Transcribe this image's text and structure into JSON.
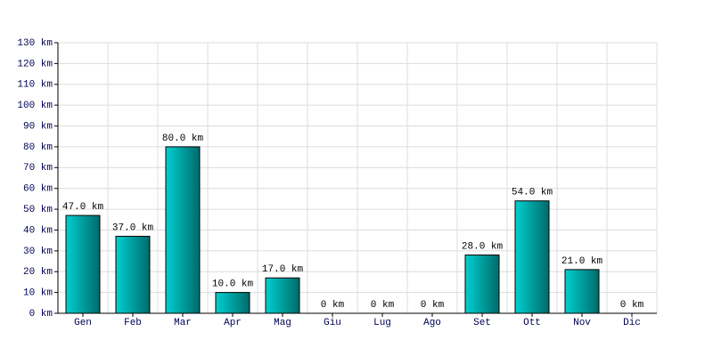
{
  "chart_data": {
    "type": "bar",
    "categories": [
      "Gen",
      "Feb",
      "Mar",
      "Apr",
      "Mag",
      "Giu",
      "Lug",
      "Ago",
      "Set",
      "Ott",
      "Nov",
      "Dic"
    ],
    "values": [
      47,
      37,
      80,
      10,
      17,
      0,
      0,
      0,
      28,
      54,
      21,
      0
    ],
    "value_labels": [
      "47.0 km",
      "37.0 km",
      "80.0 km",
      "10.0 km",
      "17.0 km",
      "0 km",
      "0 km",
      "0 km",
      "28.0 km",
      "54.0 km",
      "21.0 km",
      "0 km"
    ],
    "color": "#00d0d0",
    "ylim": [
      0,
      130
    ],
    "yticks": [
      {
        "value": 0,
        "label": "0 km"
      },
      {
        "value": 10,
        "label": "10 km"
      },
      {
        "value": 20,
        "label": "20 km"
      },
      {
        "value": 30,
        "label": "30 km"
      },
      {
        "value": 40,
        "label": "40 km"
      },
      {
        "value": 50,
        "label": "50 km"
      },
      {
        "value": 60,
        "label": "60 km"
      },
      {
        "value": 70,
        "label": "70 km"
      },
      {
        "value": 80,
        "label": "80 km"
      },
      {
        "value": 90,
        "label": "90 km"
      },
      {
        "value": 100,
        "label": "100 km"
      },
      {
        "value": 110,
        "label": "110 km"
      },
      {
        "value": 120,
        "label": "120 km"
      },
      {
        "value": 130,
        "label": "130 km"
      }
    ],
    "grid": true
  }
}
